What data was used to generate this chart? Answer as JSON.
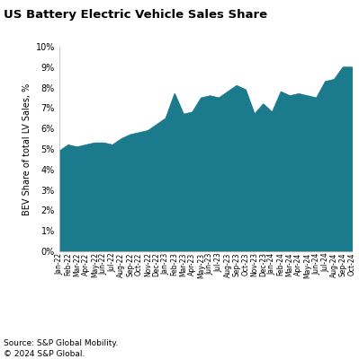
{
  "title": "US Battery Electric Vehicle Sales Share",
  "ylabel": "BEV Share of total LV Sales, %",
  "ylim": [
    0,
    10
  ],
  "yticks": [
    0,
    1,
    2,
    3,
    4,
    5,
    6,
    7,
    8,
    9,
    10
  ],
  "fill_color": "#1b7a8c",
  "line_color": "#1b7a8c",
  "background_color": "#ffffff",
  "source_line1": "Source: S&P Global Mobility.",
  "source_line2": "© 2024 S&P Global.",
  "labels": [
    "Jan-22",
    "Feb-22",
    "Mar-22",
    "Apr-22",
    "May-22",
    "Jun-22",
    "Jul-22",
    "Aug-22",
    "Sep-22",
    "Oct-22",
    "Nov-22",
    "Dec-22",
    "Jan-23",
    "Feb-23",
    "Mar-23",
    "Apr-23",
    "May-23",
    "Jun-23",
    "Jul-23",
    "Aug-23",
    "Sep-23",
    "Oct-23",
    "Nov-23",
    "Dec-23",
    "Jan-24",
    "Feb-24",
    "Mar-24",
    "Apr-24",
    "May-24",
    "Jun-24",
    "Jul-24",
    "Aug-24",
    "Sep-24",
    "Oct-24"
  ],
  "values": [
    4.9,
    5.2,
    5.1,
    5.2,
    5.3,
    5.3,
    5.2,
    5.5,
    5.7,
    5.8,
    5.9,
    6.2,
    6.5,
    7.7,
    6.7,
    6.8,
    7.5,
    7.6,
    7.5,
    7.8,
    8.1,
    7.9,
    6.7,
    7.2,
    6.8,
    7.8,
    7.6,
    7.7,
    7.6,
    7.5,
    8.3,
    8.4,
    9.0,
    9.0
  ]
}
